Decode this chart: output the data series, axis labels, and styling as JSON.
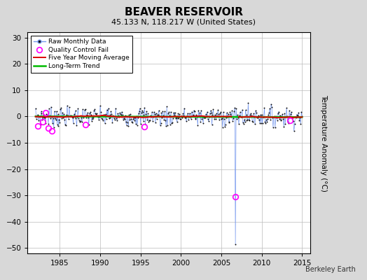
{
  "title": "BEAVER RESERVOIR",
  "subtitle": "45.133 N, 118.217 W (United States)",
  "ylabel": "Temperature Anomaly (°C)",
  "watermark": "Berkeley Earth",
  "xlim": [
    1981.0,
    2016.0
  ],
  "ylim": [
    -52,
    32
  ],
  "yticks": [
    -50,
    -40,
    -30,
    -20,
    -10,
    0,
    10,
    20,
    30
  ],
  "xticks": [
    1985,
    1990,
    1995,
    2000,
    2005,
    2010,
    2015
  ],
  "background_color": "#d8d8d8",
  "plot_bg_color": "#ffffff",
  "raw_line_color": "#7799ee",
  "raw_dot_color": "#111111",
  "qc_fail_color": "#ff00ff",
  "moving_avg_color": "#dd0000",
  "trend_color": "#00bb00",
  "spike_year": 2006.75,
  "spike_value": -48.5,
  "spike_qc_value": -30.5,
  "noise_std": 1.8,
  "qc_years": [
    1982.3,
    1982.9,
    1983.2,
    1983.6,
    1984.0,
    1988.2,
    1995.5,
    2013.5
  ],
  "qc_values": [
    -3.5,
    -2.0,
    1.5,
    -4.5,
    -5.5,
    -3.0,
    -4.0,
    -1.5
  ]
}
